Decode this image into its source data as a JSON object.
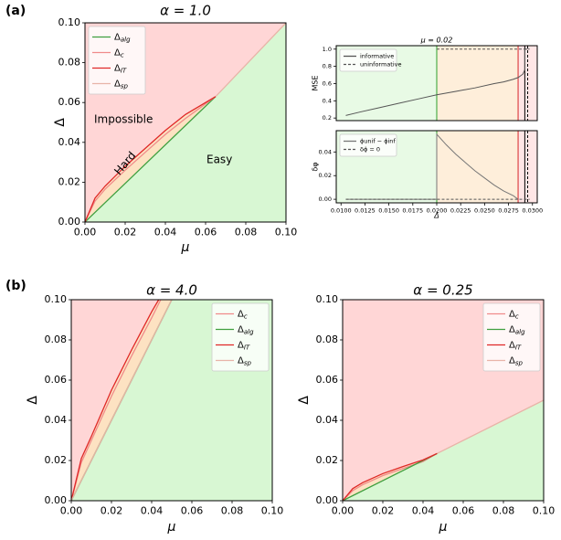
{
  "labels": {
    "a": "(a)",
    "b": "(b)"
  },
  "chart_data": [
    {
      "type": "line",
      "title": "α = 1.0",
      "x_label": "μ",
      "y_label": "Δ",
      "legend": "upper left",
      "annotations": [
        "Impossible",
        "Hard",
        "Easy"
      ],
      "xlim": [
        0,
        0.1
      ],
      "ylim": [
        0,
        0.1
      ],
      "xticks": [
        {
          "value": 0,
          "label": "0.00"
        },
        {
          "value": 0.02,
          "label": "0.02"
        },
        {
          "value": 0.04,
          "label": "0.04"
        },
        {
          "value": 0.06,
          "label": "0.06"
        },
        {
          "value": 0.08,
          "label": "0.08"
        },
        {
          "value": 0.1,
          "label": "0.10"
        }
      ],
      "yticks": [
        {
          "value": 0,
          "label": "0.00"
        },
        {
          "value": 0.02,
          "label": "0.02"
        },
        {
          "value": 0.04,
          "label": "0.04"
        },
        {
          "value": 0.06,
          "label": "0.06"
        },
        {
          "value": 0.08,
          "label": "0.08"
        },
        {
          "value": 0.1,
          "label": "0.10"
        }
      ],
      "series": [
        {
          "name": "Δalg",
          "color": "#3f9f3f",
          "x": [
            0,
            0.065
          ],
          "values": [
            0,
            0.063
          ]
        },
        {
          "name": "Δc",
          "color": "#f08a8a",
          "x": [
            0,
            0.005,
            0.01,
            0.02,
            0.03,
            0.04,
            0.05,
            0.065
          ],
          "values": [
            0,
            0.0105,
            0.0165,
            0.026,
            0.035,
            0.044,
            0.052,
            0.063
          ]
        },
        {
          "name": "ΔIT",
          "color": "#e02828",
          "x": [
            0,
            0.005,
            0.01,
            0.02,
            0.03,
            0.04,
            0.05,
            0.065
          ],
          "values": [
            0,
            0.012,
            0.018,
            0.028,
            0.037,
            0.046,
            0.054,
            0.063
          ]
        },
        {
          "name": "Δsp",
          "color": "#e8b4a8",
          "x": [
            0.065,
            0.1
          ],
          "values": [
            0.063,
            0.1
          ]
        }
      ]
    },
    {
      "type": "line",
      "title": "μ = 0.02",
      "y_label": "MSE",
      "legend": "upper left",
      "xlim": [
        0.0095,
        0.0305
      ],
      "ylim": [
        0.17,
        1.04
      ],
      "yticks": [
        0.2,
        0.4,
        0.6,
        0.8,
        {
          "value": 1.0,
          "label": "1.0"
        }
      ],
      "vlines": [
        {
          "value": 0.02,
          "color": "#2ca02c"
        },
        {
          "value": 0.0285,
          "color": "#d62728"
        },
        {
          "value": 0.0292,
          "color": "#000000"
        },
        {
          "value": 0.0295,
          "color": "#000000",
          "dash": true
        }
      ],
      "series": [
        {
          "name": "informative",
          "color": "#555555",
          "x": [
            0.0105,
            0.012,
            0.014,
            0.016,
            0.018,
            0.02,
            0.022,
            0.024,
            0.026,
            0.027,
            0.028,
            0.0285,
            0.029,
            0.0292,
            0.0292,
            0.0295
          ],
          "values": [
            0.23,
            0.27,
            0.32,
            0.37,
            0.42,
            0.47,
            0.51,
            0.55,
            0.6,
            0.62,
            0.65,
            0.67,
            0.71,
            0.76,
            1.0,
            1.0
          ]
        },
        {
          "name": "uninformative",
          "color": "#555555",
          "dash": true,
          "x": [
            0.02,
            0.0297
          ],
          "values": [
            1.0,
            1.0
          ]
        }
      ]
    },
    {
      "type": "line",
      "x_label": "Δ",
      "y_label": "δφ",
      "legend": "upper left",
      "xlim": [
        0.0095,
        0.0305
      ],
      "ylim": [
        -0.003,
        0.058
      ],
      "xticks": [
        {
          "value": 0.01,
          "label": "0.0100"
        },
        {
          "value": 0.0125,
          "label": "0.0125"
        },
        {
          "value": 0.015,
          "label": "0.0150"
        },
        {
          "value": 0.0175,
          "label": "0.0175"
        },
        {
          "value": 0.02,
          "label": "0.0200"
        },
        {
          "value": 0.0225,
          "label": "0.0225"
        },
        {
          "value": 0.025,
          "label": "0.0250"
        },
        {
          "value": 0.0275,
          "label": "0.0275"
        },
        {
          "value": 0.03,
          "label": "0.0300"
        }
      ],
      "yticks": [
        {
          "value": 0,
          "label": "0.00"
        },
        {
          "value": 0.02,
          "label": "0.02"
        },
        {
          "value": 0.04,
          "label": "0.04"
        }
      ],
      "vlines": [
        {
          "value": 0.02,
          "color": "#2ca02c"
        },
        {
          "value": 0.0285,
          "color": "#d62728"
        },
        {
          "value": 0.0292,
          "color": "#000000"
        },
        {
          "value": 0.0295,
          "color": "#000000",
          "dash": true
        }
      ],
      "series": [
        {
          "name": "ϕunif − ϕinf",
          "color": "#777777",
          "x": [
            0.0105,
            0.02,
            0.02,
            0.021,
            0.022,
            0.023,
            0.024,
            0.025,
            0.026,
            0.027,
            0.028,
            0.0285
          ],
          "values": [
            0,
            0,
            0.055,
            0.046,
            0.038,
            0.031,
            0.024,
            0.018,
            0.012,
            0.007,
            0.003,
            0
          ]
        },
        {
          "name": "δϕ = 0",
          "color": "#555555",
          "dash": true,
          "x": [
            0.0105,
            0.0297
          ],
          "values": [
            0,
            0
          ]
        }
      ]
    },
    {
      "type": "line",
      "title": "α = 4.0",
      "x_label": "μ",
      "y_label": "Δ",
      "legend": "upper right",
      "xlim": [
        0,
        0.1
      ],
      "ylim": [
        0,
        0.1
      ],
      "xticks": [
        {
          "value": 0,
          "label": "0.00"
        },
        {
          "value": 0.02,
          "label": "0.02"
        },
        {
          "value": 0.04,
          "label": "0.04"
        },
        {
          "value": 0.06,
          "label": "0.06"
        },
        {
          "value": 0.08,
          "label": "0.08"
        },
        {
          "value": 0.1,
          "label": "0.10"
        }
      ],
      "yticks": [
        {
          "value": 0,
          "label": "0.00"
        },
        {
          "value": 0.02,
          "label": "0.02"
        },
        {
          "value": 0.04,
          "label": "0.04"
        },
        {
          "value": 0.06,
          "label": "0.06"
        },
        {
          "value": 0.08,
          "label": "0.08"
        },
        {
          "value": 0.1,
          "label": "0.10"
        }
      ],
      "series": [
        {
          "name": "Δc",
          "color": "#f08a8a",
          "x": [
            0,
            0.005,
            0.01,
            0.02,
            0.03,
            0.04,
            0.0445
          ],
          "values": [
            0,
            0.019,
            0.03,
            0.052,
            0.072,
            0.091,
            0.1
          ]
        },
        {
          "name": "Δalg",
          "color": "#3f9f3f",
          "x": [
            0,
            0.05
          ],
          "values": [
            0,
            0.1
          ]
        },
        {
          "name": "ΔIT",
          "color": "#e02828",
          "x": [
            0,
            0.005,
            0.01,
            0.02,
            0.03,
            0.04,
            0.0435
          ],
          "values": [
            0,
            0.021,
            0.032,
            0.055,
            0.075,
            0.094,
            0.1
          ]
        },
        {
          "name": "Δsp",
          "color": "#e8b4a8",
          "x": [
            0,
            0.05
          ],
          "values": [
            0,
            0.1
          ]
        }
      ]
    },
    {
      "type": "line",
      "title": "α = 0.25",
      "x_label": "μ",
      "y_label": "Δ",
      "legend": "upper right",
      "xlim": [
        0,
        0.1
      ],
      "ylim": [
        0,
        0.1
      ],
      "xticks": [
        {
          "value": 0,
          "label": "0.00"
        },
        {
          "value": 0.02,
          "label": "0.02"
        },
        {
          "value": 0.04,
          "label": "0.04"
        },
        {
          "value": 0.06,
          "label": "0.06"
        },
        {
          "value": 0.08,
          "label": "0.08"
        },
        {
          "value": 0.1,
          "label": "0.10"
        }
      ],
      "yticks": [
        {
          "value": 0,
          "label": "0.00"
        },
        {
          "value": 0.02,
          "label": "0.02"
        },
        {
          "value": 0.04,
          "label": "0.04"
        },
        {
          "value": 0.06,
          "label": "0.06"
        },
        {
          "value": 0.08,
          "label": "0.08"
        },
        {
          "value": 0.1,
          "label": "0.10"
        }
      ],
      "series": [
        {
          "name": "Δc",
          "color": "#f08a8a",
          "x": [
            0,
            0.005,
            0.01,
            0.02,
            0.03,
            0.04,
            0.047
          ],
          "values": [
            0,
            0.005,
            0.008,
            0.0125,
            0.016,
            0.0195,
            0.0235
          ]
        },
        {
          "name": "Δalg",
          "color": "#3f9f3f",
          "x": [
            0,
            0.047
          ],
          "values": [
            0,
            0.0235
          ]
        },
        {
          "name": "ΔIT",
          "color": "#e02828",
          "x": [
            0,
            0.005,
            0.01,
            0.02,
            0.03,
            0.04,
            0.047
          ],
          "values": [
            0,
            0.006,
            0.009,
            0.0135,
            0.017,
            0.0203,
            0.0235
          ]
        },
        {
          "name": "Δsp",
          "color": "#e8b4a8",
          "x": [
            0.047,
            0.1
          ],
          "values": [
            0.0235,
            0.05
          ]
        }
      ]
    }
  ]
}
